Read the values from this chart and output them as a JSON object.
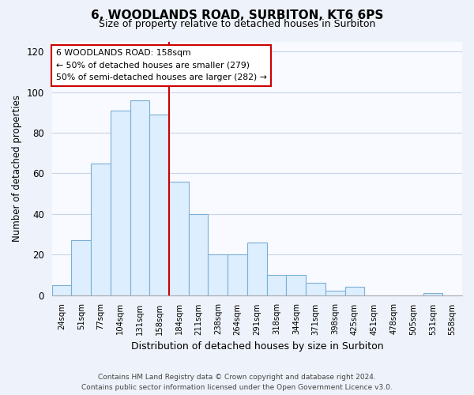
{
  "title": "6, WOODLANDS ROAD, SURBITON, KT6 6PS",
  "subtitle": "Size of property relative to detached houses in Surbiton",
  "xlabel": "Distribution of detached houses by size in Surbiton",
  "ylabel": "Number of detached properties",
  "categories": [
    "24sqm",
    "51sqm",
    "77sqm",
    "104sqm",
    "131sqm",
    "158sqm",
    "184sqm",
    "211sqm",
    "238sqm",
    "264sqm",
    "291sqm",
    "318sqm",
    "344sqm",
    "371sqm",
    "398sqm",
    "425sqm",
    "451sqm",
    "478sqm",
    "505sqm",
    "531sqm",
    "558sqm"
  ],
  "values": [
    5,
    27,
    65,
    91,
    96,
    89,
    56,
    40,
    20,
    20,
    26,
    10,
    10,
    6,
    2,
    4,
    0,
    0,
    0,
    1,
    0
  ],
  "bar_color": "#ddeeff",
  "bar_edge_color": "#7ab0d4",
  "vline_color": "#cc0000",
  "vline_x_index": 5,
  "annotation_text_line1": "6 WOODLANDS ROAD: 158sqm",
  "annotation_text_line2": "← 50% of detached houses are smaller (279)",
  "annotation_text_line3": "50% of semi-detached houses are larger (282) →",
  "ylim": [
    0,
    125
  ],
  "yticks": [
    0,
    20,
    40,
    60,
    80,
    100,
    120
  ],
  "footer_line1": "Contains HM Land Registry data © Crown copyright and database right 2024.",
  "footer_line2": "Contains public sector information licensed under the Open Government Licence v3.0.",
  "background_color": "#eef2fa",
  "plot_bg_color": "#f8faff",
  "grid_color": "#c8d4e8"
}
